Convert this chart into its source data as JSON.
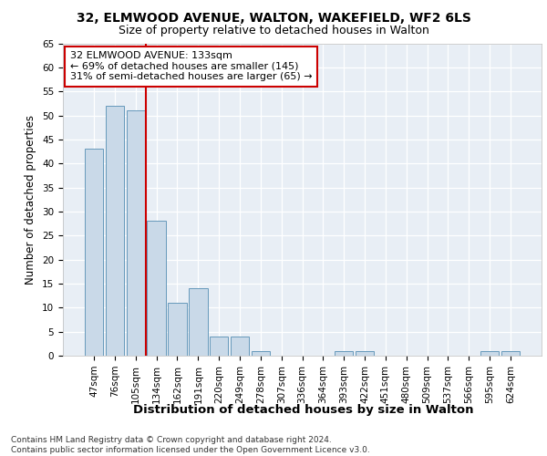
{
  "title1": "32, ELMWOOD AVENUE, WALTON, WAKEFIELD, WF2 6LS",
  "title2": "Size of property relative to detached houses in Walton",
  "xlabel": "Distribution of detached houses by size in Walton",
  "ylabel": "Number of detached properties",
  "categories": [
    "47sqm",
    "76sqm",
    "105sqm",
    "134sqm",
    "162sqm",
    "191sqm",
    "220sqm",
    "249sqm",
    "278sqm",
    "307sqm",
    "336sqm",
    "364sqm",
    "393sqm",
    "422sqm",
    "451sqm",
    "480sqm",
    "509sqm",
    "537sqm",
    "566sqm",
    "595sqm",
    "624sqm"
  ],
  "values": [
    43,
    52,
    51,
    28,
    11,
    14,
    4,
    4,
    1,
    0,
    0,
    0,
    1,
    1,
    0,
    0,
    0,
    0,
    0,
    1,
    1
  ],
  "bar_color": "#c9d9e8",
  "bar_edge_color": "#6699bb",
  "vline_color": "#cc0000",
  "annotation_text": "32 ELMWOOD AVENUE: 133sqm\n← 69% of detached houses are smaller (145)\n31% of semi-detached houses are larger (65) →",
  "annotation_box_color": "#ffffff",
  "annotation_box_edge_color": "#cc0000",
  "ylim": [
    0,
    65
  ],
  "yticks": [
    0,
    5,
    10,
    15,
    20,
    25,
    30,
    35,
    40,
    45,
    50,
    55,
    60,
    65
  ],
  "footer": "Contains HM Land Registry data © Crown copyright and database right 2024.\nContains public sector information licensed under the Open Government Licence v3.0.",
  "plot_bg_color": "#e8eef5",
  "title1_fontsize": 10,
  "title2_fontsize": 9,
  "xlabel_fontsize": 9.5,
  "ylabel_fontsize": 8.5,
  "tick_fontsize": 7.5,
  "annotation_fontsize": 8,
  "footer_fontsize": 6.5
}
